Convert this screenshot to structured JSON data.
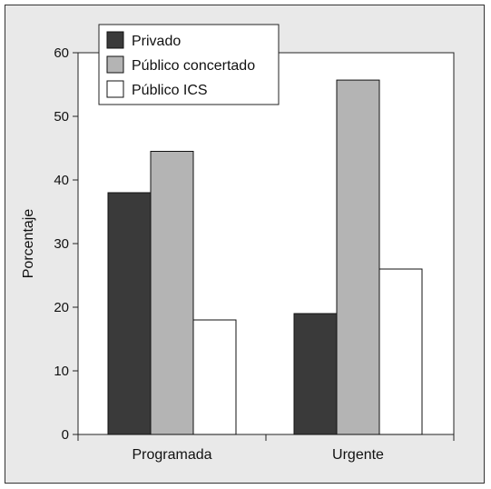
{
  "chart_data": {
    "type": "bar",
    "categories": [
      "Programada",
      "Urgente"
    ],
    "series": [
      {
        "name": "Privado",
        "values": [
          38,
          19
        ],
        "color": "#3a3a3a"
      },
      {
        "name": "Público concertado",
        "values": [
          44.5,
          55.7
        ],
        "color": "#b4b4b4"
      },
      {
        "name": "Público ICS",
        "values": [
          18,
          26
        ],
        "color": "#ffffff"
      }
    ],
    "ylabel": "Porcentaje",
    "xlabel": "",
    "ylim": [
      0,
      60
    ],
    "yticks": [
      0,
      10,
      20,
      30,
      40,
      50,
      60
    ],
    "grid": false,
    "legend": "top-left"
  }
}
